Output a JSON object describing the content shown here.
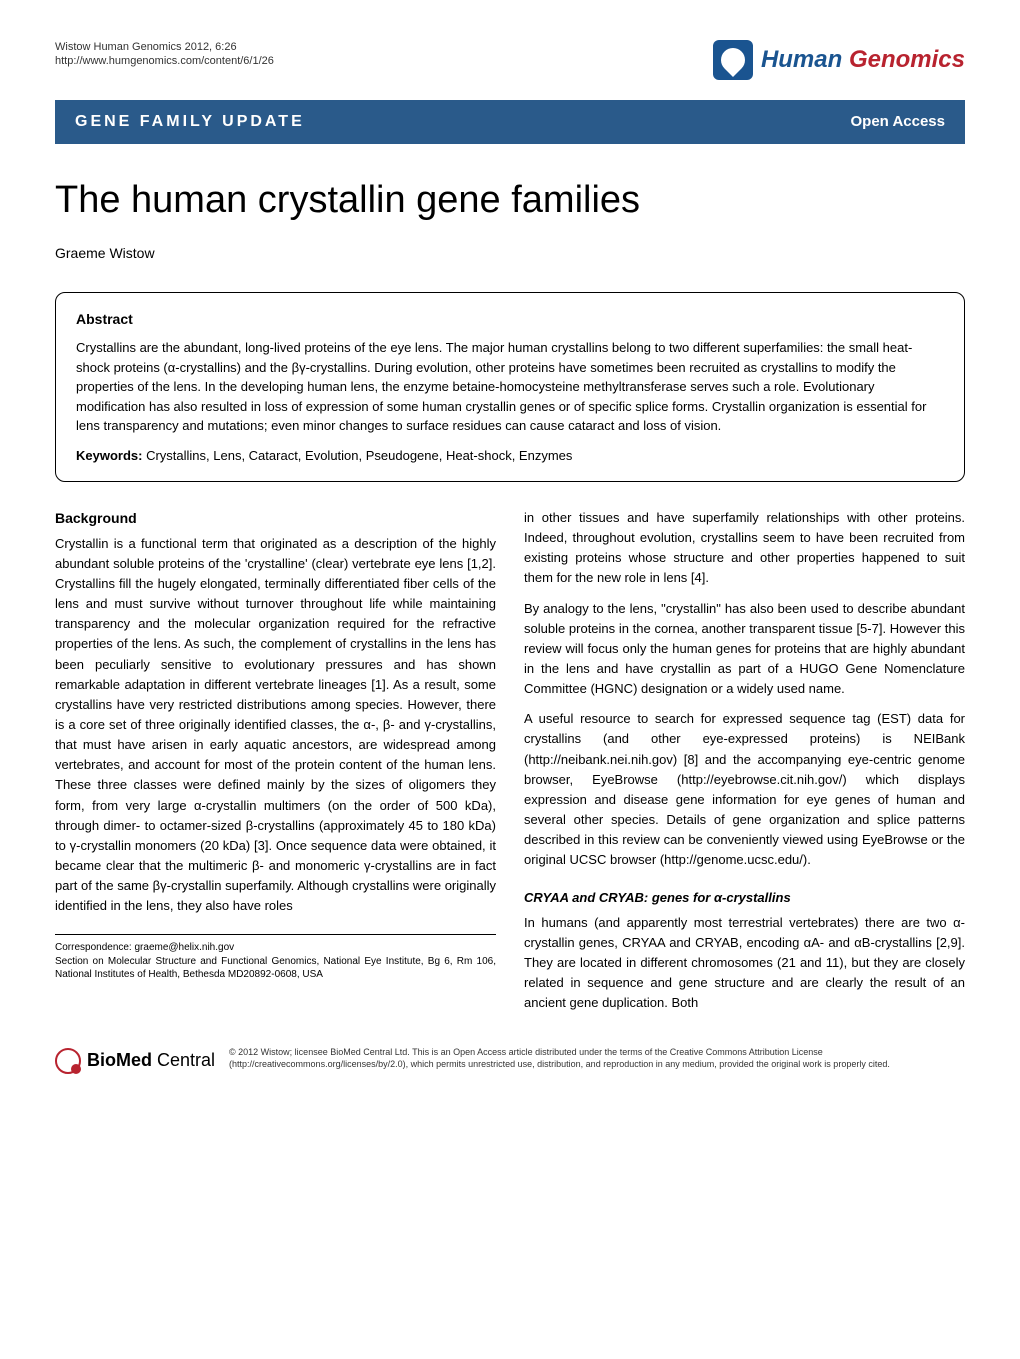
{
  "header": {
    "citation_line1": "Wistow Human Genomics 2012, 6:26",
    "citation_line2": "http://www.humgenomics.com/content/6/1/26",
    "journal_name_part1": "Human",
    "journal_name_part2": "Genomics"
  },
  "banner": {
    "category": "GENE FAMILY UPDATE",
    "access": "Open Access"
  },
  "article": {
    "title": "The human crystallin gene families",
    "author": "Graeme Wistow"
  },
  "abstract": {
    "heading": "Abstract",
    "text": "Crystallins are the abundant, long-lived proteins of the eye lens. The major human crystallins belong to two different superfamilies: the small heat-shock proteins (α-crystallins) and the βγ-crystallins. During evolution, other proteins have sometimes been recruited as crystallins to modify the properties of the lens. In the developing human lens, the enzyme betaine-homocysteine methyltransferase serves such a role. Evolutionary modification has also resulted in loss of expression of some human crystallin genes or of specific splice forms. Crystallin organization is essential for lens transparency and mutations; even minor changes to surface residues can cause cataract and loss of vision.",
    "keywords_label": "Keywords:",
    "keywords": " Crystallins, Lens, Cataract, Evolution, Pseudogene, Heat-shock, Enzymes"
  },
  "body": {
    "background_heading": "Background",
    "left_p1": "Crystallin is a functional term that originated as a description of the highly abundant soluble proteins of the 'crystalline' (clear) vertebrate eye lens [1,2]. Crystallins fill the hugely elongated, terminally differentiated fiber cells of the lens and must survive without turnover throughout life while maintaining transparency and the molecular organization required for the refractive properties of the lens. As such, the complement of crystallins in the lens has been peculiarly sensitive to evolutionary pressures and has shown remarkable adaptation in different vertebrate lineages [1]. As a result, some crystallins have very restricted distributions among species. However, there is a core set of three originally identified classes, the α-, β- and γ-crystallins, that must have arisen in early aquatic ancestors, are widespread among vertebrates, and account for most of the protein content of the human lens. These three classes were defined mainly by the sizes of oligomers they form, from very large α-crystallin multimers (on the order of 500 kDa), through dimer- to octamer-sized β-crystallins (approximately 45 to 180 kDa) to γ-crystallin monomers (20 kDa) [3]. Once sequence data were obtained, it became clear that the multimeric β- and monomeric γ-crystallins are in fact part of the same βγ-crystallin superfamily. Although crystallins were originally identified in the lens, they also have roles",
    "right_p1": "in other tissues and have superfamily relationships with other proteins. Indeed, throughout evolution, crystallins seem to have been recruited from existing proteins whose structure and other properties happened to suit them for the new role in lens [4].",
    "right_p2": "By analogy to the lens, \"crystallin\" has also been used to describe abundant soluble proteins in the cornea, another transparent tissue [5-7]. However this review will focus only the human genes for proteins that are highly abundant in the lens and have crystallin as part of a HUGO Gene Nomenclature Committee (HGNC) designation or a widely used name.",
    "right_p3": "A useful resource to search for expressed sequence tag (EST) data for crystallins (and other eye-expressed proteins) is NEIBank (http://neibank.nei.nih.gov) [8] and the accompanying eye-centric genome browser, EyeBrowse (http://eyebrowse.cit.nih.gov/) which displays expression and disease gene information for eye genes of human and several other species. Details of gene organization and splice patterns described in this review can be conveniently viewed using EyeBrowse or the original UCSC browser (http://genome.ucsc.edu/).",
    "subsection_heading": "CRYAA and CRYAB: genes for α-crystallins",
    "right_p4": "In humans (and apparently most terrestrial vertebrates) there are two α-crystallin genes, CRYAA and CRYAB, encoding αA- and αB-crystallins [2,9]. They are located in different chromosomes (21 and 11), but they are closely related in sequence and gene structure and are clearly the result of an ancient gene duplication. Both"
  },
  "correspondence": {
    "line1": "Correspondence: graeme@helix.nih.gov",
    "line2": "Section on Molecular Structure and Functional Genomics, National Eye Institute, Bg 6, Rm 106, National Institutes of Health, Bethesda MD20892-0608, USA"
  },
  "footer": {
    "publisher_bio": "BioMed",
    "publisher_central": " Central",
    "copyright": "© 2012 Wistow; licensee BioMed Central Ltd. This is an Open Access article distributed under the terms of the Creative Commons Attribution License (http://creativecommons.org/licenses/by/2.0), which permits unrestricted use, distribution, and reproduction in any medium, provided the original work is properly cited."
  }
}
